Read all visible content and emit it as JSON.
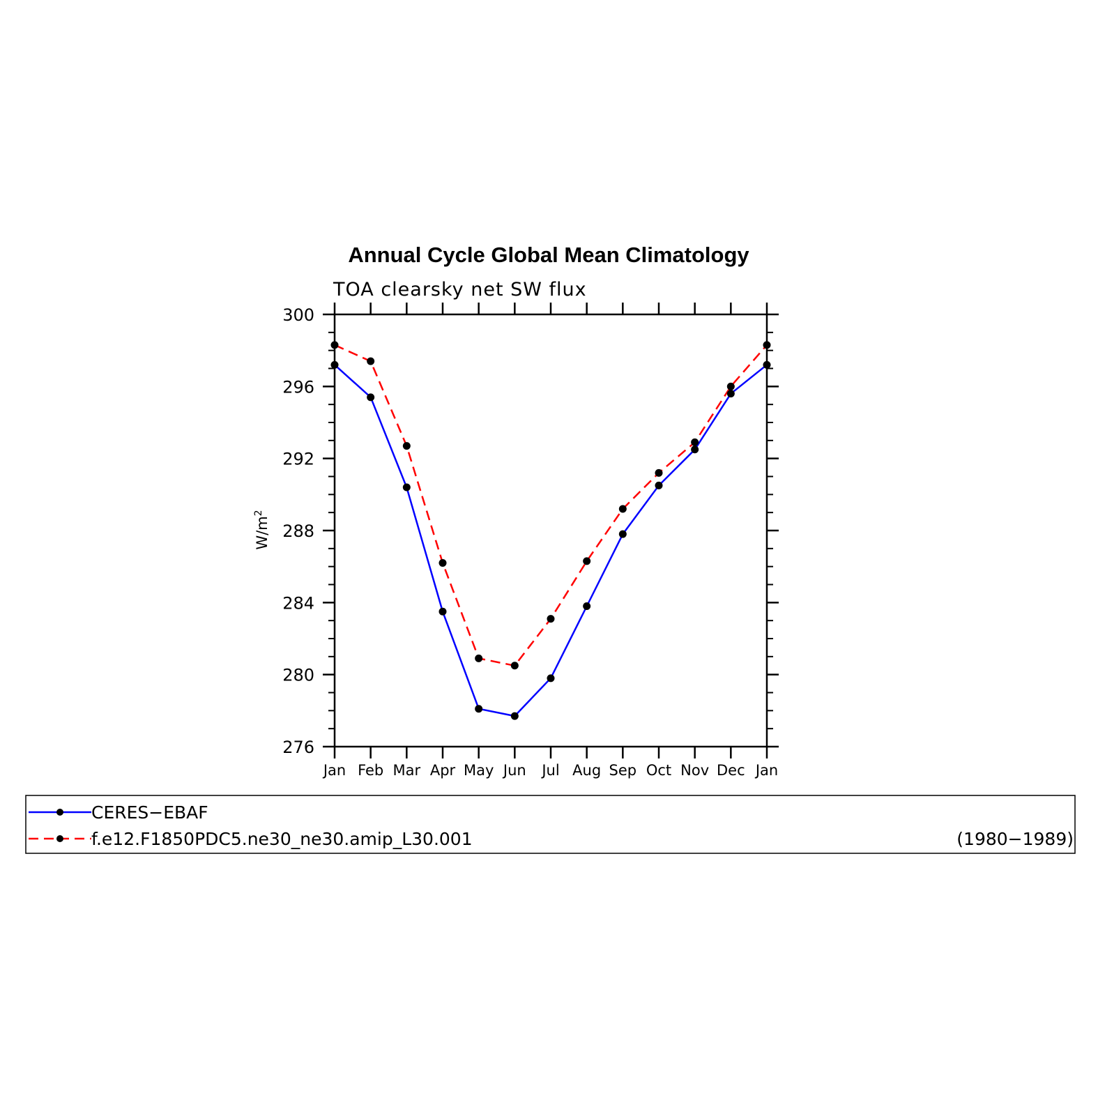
{
  "chart_data": {
    "type": "line",
    "title": "Annual Cycle Global Mean Climatology",
    "subtitle": "TOA clearsky net SW flux",
    "ylabel": "W/m",
    "ylabel_superscript": "2",
    "ylim": [
      276,
      300
    ],
    "yticks": [
      "276",
      "280",
      "284",
      "288",
      "292",
      "296",
      "300"
    ],
    "categories": [
      "Jan",
      "Feb",
      "Mar",
      "Apr",
      "May",
      "Jun",
      "Jul",
      "Aug",
      "Sep",
      "Oct",
      "Nov",
      "Dec",
      "Jan"
    ],
    "series": [
      {
        "name": "CERES−EBAF",
        "color": "#0000ff",
        "dash": "solid",
        "values": [
          297.2,
          295.4,
          290.4,
          283.5,
          278.1,
          277.7,
          279.8,
          283.8,
          287.8,
          290.5,
          292.5,
          295.6,
          297.2
        ]
      },
      {
        "name": "f.e12.F1850PDC5.ne30_ne30.amip_L30.001",
        "color": "#ff0000",
        "dash": "dashed",
        "values": [
          298.3,
          297.4,
          292.7,
          286.2,
          280.9,
          280.5,
          283.1,
          286.3,
          289.2,
          291.2,
          292.9,
          296.0,
          298.3
        ]
      }
    ],
    "legend": {
      "placement": "bottom",
      "period": "(1980−1989)"
    },
    "grid": false
  }
}
